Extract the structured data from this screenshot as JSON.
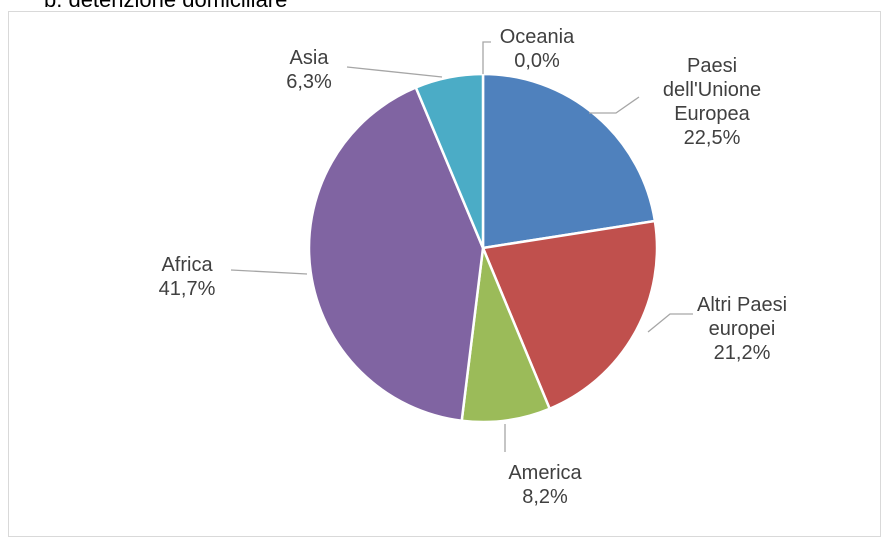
{
  "heading": {
    "text": "b.    detenzione domiciliare"
  },
  "chart_data": {
    "type": "pie",
    "start_angle_deg": 0,
    "direction": "clockwise",
    "slices": [
      {
        "label_lines": [
          "Paesi",
          "dell'Unione",
          "Europea"
        ],
        "value_text": "22,5%",
        "value": 22.5,
        "color": "#4f81bd"
      },
      {
        "label_lines": [
          "Altri Paesi",
          "europei"
        ],
        "value_text": "21,2%",
        "value": 21.2,
        "color": "#c0504d"
      },
      {
        "label_lines": [
          "America"
        ],
        "value_text": "8,2%",
        "value": 8.2,
        "color": "#9bbb59"
      },
      {
        "label_lines": [
          "Africa"
        ],
        "value_text": "41,7%",
        "value": 41.7,
        "color": "#8064a2"
      },
      {
        "label_lines": [
          "Asia"
        ],
        "value_text": "6,3%",
        "value": 6.3,
        "color": "#4bacc6"
      },
      {
        "label_lines": [
          "Oceania"
        ],
        "value_text": "0,0%",
        "value": 0.0,
        "color": "#f79646"
      }
    ]
  }
}
